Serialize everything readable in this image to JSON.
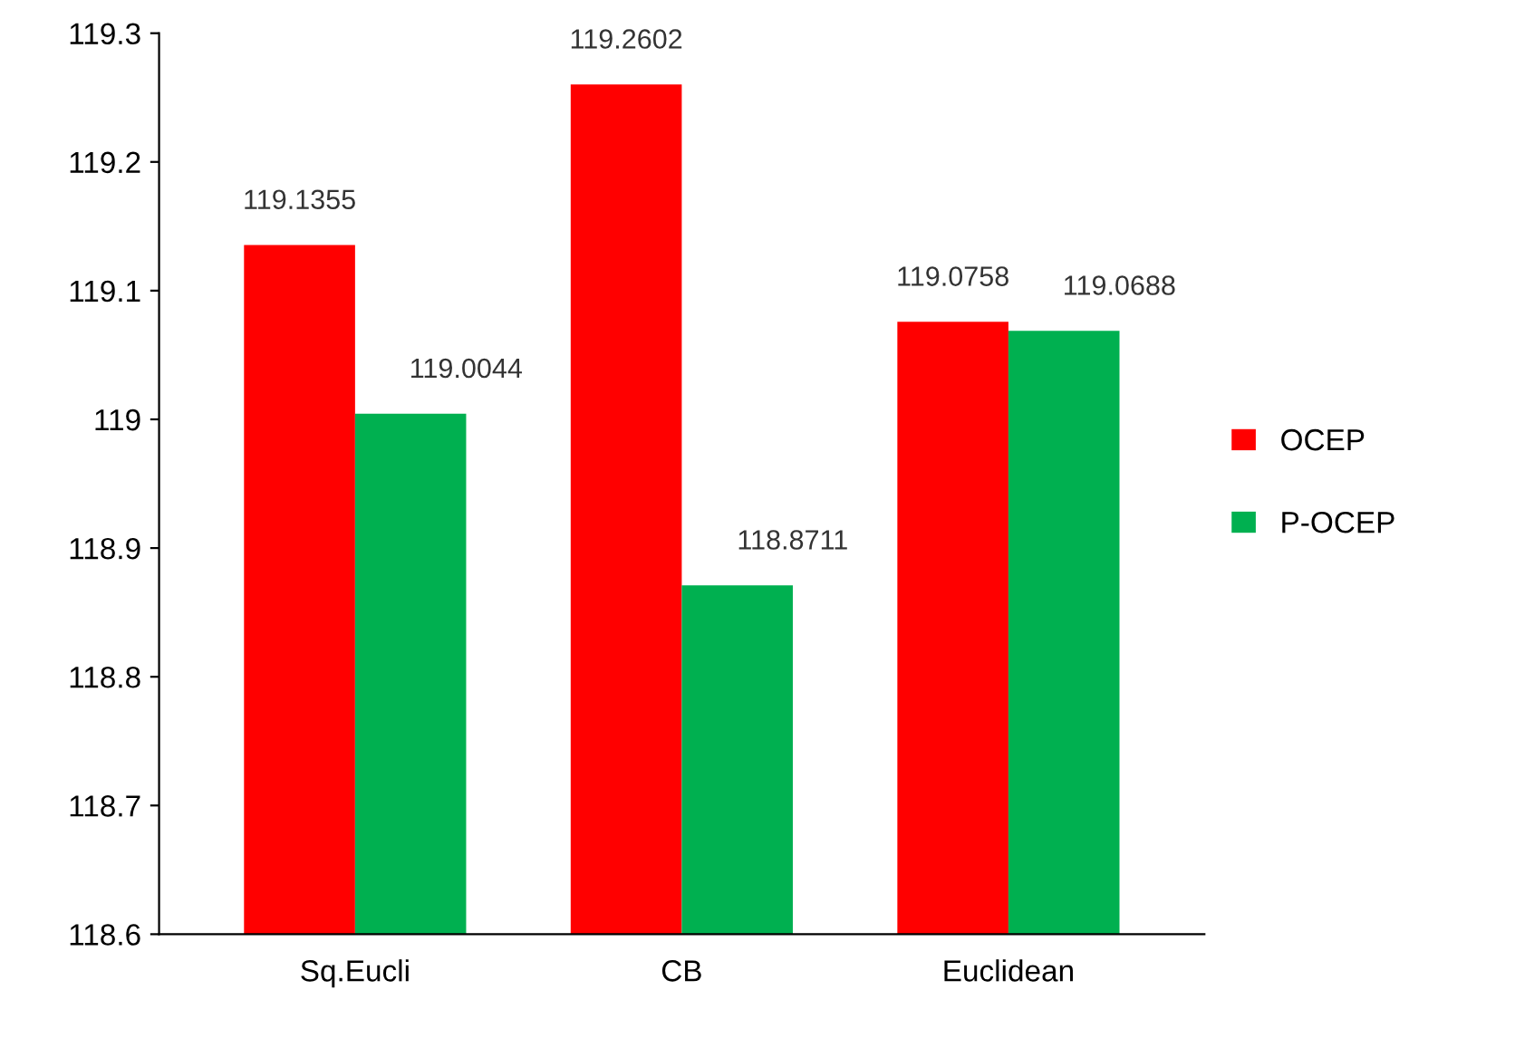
{
  "chart_data": {
    "type": "bar",
    "categories": [
      "Sq.Eucli",
      "CB",
      "Euclidean"
    ],
    "series": [
      {
        "name": "OCEP",
        "color": "#ff0000",
        "values": [
          119.1355,
          119.2602,
          119.0758
        ]
      },
      {
        "name": "P-OCEP",
        "color": "#00b050",
        "values": [
          119.0044,
          118.8711,
          119.0688
        ]
      }
    ],
    "ylim": [
      118.6,
      119.3
    ],
    "yticks": [
      118.6,
      118.7,
      118.8,
      118.9,
      119,
      119.1,
      119.2,
      119.3
    ],
    "data_labels": true,
    "grid": false,
    "legend": "right"
  }
}
